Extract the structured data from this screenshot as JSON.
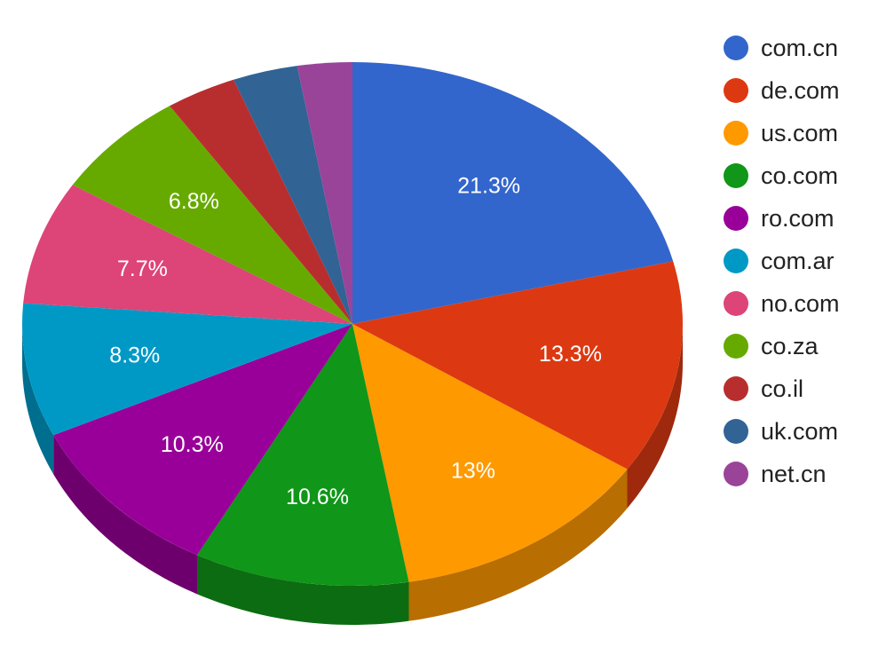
{
  "chart_data": {
    "type": "pie",
    "style": "3d",
    "legend_position": "right",
    "slices": [
      {
        "label": "com.cn",
        "value": 21.3,
        "value_label": "21.3%",
        "color": "#3366cc"
      },
      {
        "label": "de.com",
        "value": 13.3,
        "value_label": "13.3%",
        "color": "#dc3912"
      },
      {
        "label": "us.com",
        "value": 13.0,
        "value_label": "13%",
        "color": "#ff9900"
      },
      {
        "label": "co.com",
        "value": 10.6,
        "value_label": "10.6%",
        "color": "#109618"
      },
      {
        "label": "ro.com",
        "value": 10.3,
        "value_label": "10.3%",
        "color": "#990099"
      },
      {
        "label": "com.ar",
        "value": 8.3,
        "value_label": "8.3%",
        "color": "#0099c6"
      },
      {
        "label": "no.com",
        "value": 7.7,
        "value_label": "7.7%",
        "color": "#dd4477"
      },
      {
        "label": "co.za",
        "value": 6.8,
        "value_label": "6.8%",
        "color": "#66aa00"
      },
      {
        "label": "co.il",
        "value": 3.5,
        "value_label": "",
        "color": "#b82e2e"
      },
      {
        "label": "uk.com",
        "value": 3.2,
        "value_label": "",
        "color": "#316395"
      },
      {
        "label": "net.cn",
        "value": 2.7,
        "value_label": "",
        "color": "#994499"
      }
    ]
  }
}
